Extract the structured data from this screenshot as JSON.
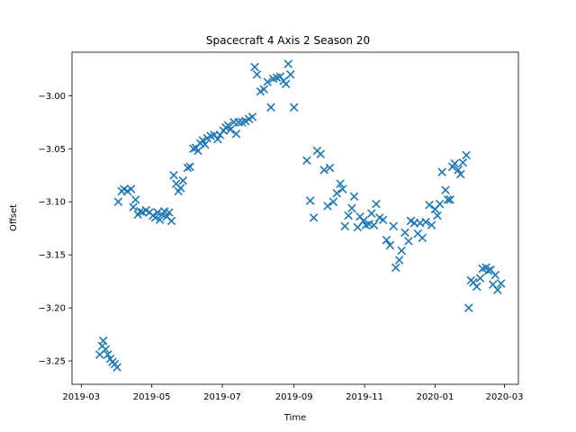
{
  "chart_data": {
    "type": "scatter",
    "title": "Spacecraft 4 Axis 2 Season 20",
    "xlabel": "Time",
    "ylabel": "Offset",
    "xlim": [
      "2019-02-21",
      "2020-03-13"
    ],
    "ylim": [
      -3.272,
      -2.959
    ],
    "grid": false,
    "marker": "x",
    "marker_color": "#1f77b4",
    "x_ticks": [
      {
        "date": "2019-03-01",
        "label": "2019-03"
      },
      {
        "date": "2019-05-01",
        "label": "2019-05"
      },
      {
        "date": "2019-07-01",
        "label": "2019-07"
      },
      {
        "date": "2019-09-01",
        "label": "2019-09"
      },
      {
        "date": "2019-11-01",
        "label": "2019-11"
      },
      {
        "date": "2020-01-01",
        "label": "2020-01"
      },
      {
        "date": "2020-03-01",
        "label": "2020-03"
      }
    ],
    "y_ticks": [
      {
        "value": -3.0,
        "label": "−3.00"
      },
      {
        "value": -3.05,
        "label": "−3.05"
      },
      {
        "value": -3.1,
        "label": "−3.10"
      },
      {
        "value": -3.15,
        "label": "−3.15"
      },
      {
        "value": -3.2,
        "label": "−3.20"
      },
      {
        "value": -3.25,
        "label": "−3.25"
      }
    ],
    "series": [
      {
        "points": [
          [
            "2019-03-17",
            -3.244
          ],
          [
            "2019-03-19",
            -3.236
          ],
          [
            "2019-03-20",
            -3.231
          ],
          [
            "2019-03-22",
            -3.239
          ],
          [
            "2019-03-24",
            -3.244
          ],
          [
            "2019-03-26",
            -3.248
          ],
          [
            "2019-03-28",
            -3.251
          ],
          [
            "2019-03-30",
            -3.253
          ],
          [
            "2019-04-01",
            -3.256
          ],
          [
            "2019-04-02",
            -3.1
          ],
          [
            "2019-04-05",
            -3.09
          ],
          [
            "2019-04-07",
            -3.088
          ],
          [
            "2019-04-10",
            -3.09
          ],
          [
            "2019-04-13",
            -3.088
          ],
          [
            "2019-04-15",
            -3.105
          ],
          [
            "2019-04-17",
            -3.098
          ],
          [
            "2019-04-19",
            -3.112
          ],
          [
            "2019-04-21",
            -3.109
          ],
          [
            "2019-04-23",
            -3.11
          ],
          [
            "2019-04-26",
            -3.108
          ],
          [
            "2019-04-29",
            -3.11
          ],
          [
            "2019-05-02",
            -3.113
          ],
          [
            "2019-05-04",
            -3.115
          ],
          [
            "2019-05-06",
            -3.11
          ],
          [
            "2019-05-08",
            -3.117
          ],
          [
            "2019-05-10",
            -3.112
          ],
          [
            "2019-05-12",
            -3.109
          ],
          [
            "2019-05-14",
            -3.114
          ],
          [
            "2019-05-16",
            -3.11
          ],
          [
            "2019-05-18",
            -3.118
          ],
          [
            "2019-05-20",
            -3.075
          ],
          [
            "2019-05-22",
            -3.083
          ],
          [
            "2019-05-24",
            -3.09
          ],
          [
            "2019-05-26",
            -3.087
          ],
          [
            "2019-05-28",
            -3.08
          ],
          [
            "2019-06-01",
            -3.068
          ],
          [
            "2019-06-03",
            -3.067
          ],
          [
            "2019-06-06",
            -3.05
          ],
          [
            "2019-06-08",
            -3.049
          ],
          [
            "2019-06-10",
            -3.052
          ],
          [
            "2019-06-12",
            -3.045
          ],
          [
            "2019-06-14",
            -3.042
          ],
          [
            "2019-06-16",
            -3.046
          ],
          [
            "2019-06-18",
            -3.04
          ],
          [
            "2019-06-21",
            -3.038
          ],
          [
            "2019-06-24",
            -3.037
          ],
          [
            "2019-06-27",
            -3.041
          ],
          [
            "2019-06-29",
            -3.037
          ],
          [
            "2019-07-02",
            -3.033
          ],
          [
            "2019-07-04",
            -3.03
          ],
          [
            "2019-07-06",
            -3.028
          ],
          [
            "2019-07-08",
            -3.032
          ],
          [
            "2019-07-11",
            -3.025
          ],
          [
            "2019-07-13",
            -3.036
          ],
          [
            "2019-07-15",
            -3.025
          ],
          [
            "2019-07-18",
            -3.025
          ],
          [
            "2019-07-21",
            -3.024
          ],
          [
            "2019-07-24",
            -3.022
          ],
          [
            "2019-07-27",
            -3.02
          ],
          [
            "2019-07-29",
            -2.973
          ],
          [
            "2019-07-31",
            -2.98
          ],
          [
            "2019-08-03",
            -2.996
          ],
          [
            "2019-08-06",
            -2.994
          ],
          [
            "2019-08-09",
            -2.987
          ],
          [
            "2019-08-12",
            -3.011
          ],
          [
            "2019-08-14",
            -2.984
          ],
          [
            "2019-08-17",
            -2.983
          ],
          [
            "2019-08-20",
            -2.982
          ],
          [
            "2019-08-23",
            -2.986
          ],
          [
            "2019-08-25",
            -2.989
          ],
          [
            "2019-08-27",
            -2.97
          ],
          [
            "2019-08-29",
            -2.98
          ],
          [
            "2019-09-01",
            -3.011
          ],
          [
            "2019-09-12",
            -3.061
          ],
          [
            "2019-09-15",
            -3.099
          ],
          [
            "2019-09-18",
            -3.115
          ],
          [
            "2019-09-21",
            -3.052
          ],
          [
            "2019-09-24",
            -3.055
          ],
          [
            "2019-09-27",
            -3.07
          ],
          [
            "2019-09-30",
            -3.104
          ],
          [
            "2019-10-02",
            -3.068
          ],
          [
            "2019-10-05",
            -3.1
          ],
          [
            "2019-10-08",
            -3.092
          ],
          [
            "2019-10-11",
            -3.083
          ],
          [
            "2019-10-13",
            -3.088
          ],
          [
            "2019-10-15",
            -3.123
          ],
          [
            "2019-10-18",
            -3.113
          ],
          [
            "2019-10-21",
            -3.106
          ],
          [
            "2019-10-23",
            -3.095
          ],
          [
            "2019-10-26",
            -3.124
          ],
          [
            "2019-10-28",
            -3.114
          ],
          [
            "2019-10-31",
            -3.118
          ],
          [
            "2019-11-02",
            -3.122
          ],
          [
            "2019-11-05",
            -3.121
          ],
          [
            "2019-11-07",
            -3.111
          ],
          [
            "2019-11-09",
            -3.122
          ],
          [
            "2019-11-11",
            -3.102
          ],
          [
            "2019-11-14",
            -3.115
          ],
          [
            "2019-11-17",
            -3.117
          ],
          [
            "2019-11-20",
            -3.136
          ],
          [
            "2019-11-23",
            -3.141
          ],
          [
            "2019-11-26",
            -3.123
          ],
          [
            "2019-11-28",
            -3.162
          ],
          [
            "2019-12-01",
            -3.155
          ],
          [
            "2019-12-03",
            -3.146
          ],
          [
            "2019-12-06",
            -3.129
          ],
          [
            "2019-12-09",
            -3.137
          ],
          [
            "2019-12-11",
            -3.118
          ],
          [
            "2019-12-14",
            -3.12
          ],
          [
            "2019-12-17",
            -3.13
          ],
          [
            "2019-12-19",
            -3.12
          ],
          [
            "2019-12-21",
            -3.134
          ],
          [
            "2019-12-24",
            -3.119
          ],
          [
            "2019-12-27",
            -3.103
          ],
          [
            "2019-12-29",
            -3.122
          ],
          [
            "2020-01-01",
            -3.107
          ],
          [
            "2020-01-03",
            -3.113
          ],
          [
            "2020-01-05",
            -3.102
          ],
          [
            "2020-01-07",
            -3.072
          ],
          [
            "2020-01-10",
            -3.089
          ],
          [
            "2020-01-12",
            -3.098
          ],
          [
            "2020-01-14",
            -3.098
          ],
          [
            "2020-01-16",
            -3.067
          ],
          [
            "2020-01-18",
            -3.064
          ],
          [
            "2020-01-21",
            -3.07
          ],
          [
            "2020-01-23",
            -3.074
          ],
          [
            "2020-01-25",
            -3.063
          ],
          [
            "2020-01-28",
            -3.056
          ],
          [
            "2020-01-30",
            -3.2
          ],
          [
            "2020-02-01",
            -3.174
          ],
          [
            "2020-02-03",
            -3.176
          ],
          [
            "2020-02-06",
            -3.18
          ],
          [
            "2020-02-09",
            -3.172
          ],
          [
            "2020-02-11",
            -3.163
          ],
          [
            "2020-02-14",
            -3.162
          ],
          [
            "2020-02-16",
            -3.165
          ],
          [
            "2020-02-18",
            -3.164
          ],
          [
            "2020-02-20",
            -3.178
          ],
          [
            "2020-02-22",
            -3.169
          ],
          [
            "2020-02-24",
            -3.183
          ],
          [
            "2020-02-27",
            -3.177
          ]
        ]
      }
    ]
  }
}
